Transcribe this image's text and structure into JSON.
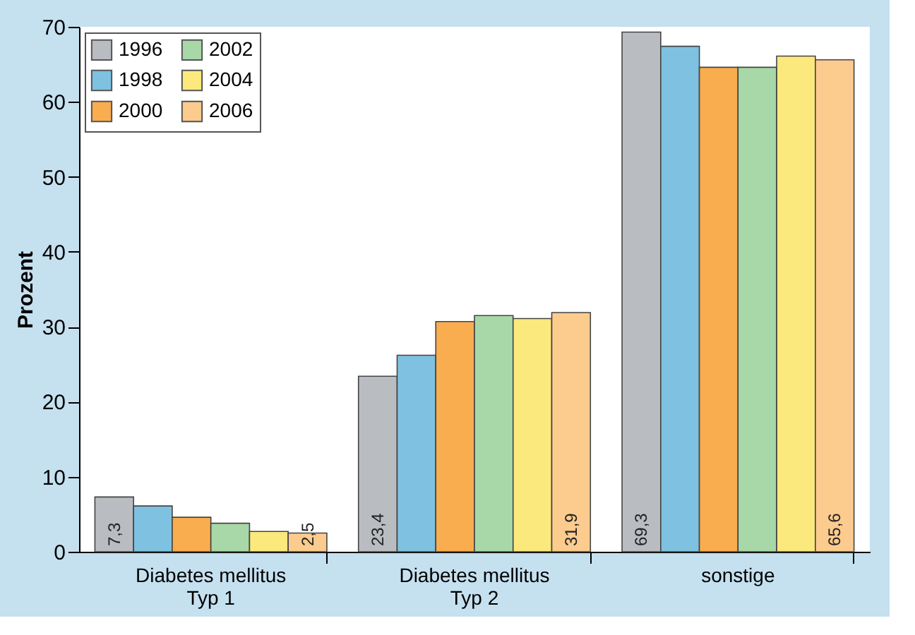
{
  "chart_data": {
    "type": "bar",
    "ylabel": "Prozent",
    "categories": [
      "Diabetes mellitus\nTyp 1",
      "Diabetes mellitus\nTyp 2",
      "sonstige"
    ],
    "series": [
      {
        "name": "1996",
        "color": "#b9bcc1",
        "values": [
          7.3,
          23.4,
          69.3
        ],
        "value_labels": [
          "7,3",
          "23,4",
          "69,3"
        ]
      },
      {
        "name": "1998",
        "color": "#7fc1e0",
        "values": [
          6.1,
          26.2,
          67.4
        ]
      },
      {
        "name": "2000",
        "color": "#f9ad4f",
        "values": [
          4.6,
          30.7,
          64.6
        ]
      },
      {
        "name": "2002",
        "color": "#a8d8a8",
        "values": [
          3.8,
          31.5,
          64.6
        ]
      },
      {
        "name": "2004",
        "color": "#fbe97d",
        "values": [
          2.7,
          31.1,
          66.1
        ]
      },
      {
        "name": "2006",
        "color": "#fccb8e",
        "values": [
          2.5,
          31.9,
          65.6
        ],
        "value_labels": [
          "2,5",
          "31,9",
          "65,6"
        ]
      }
    ],
    "ylim": [
      0,
      70
    ],
    "yticks": [
      0,
      10,
      20,
      30,
      40,
      50,
      60,
      70
    ],
    "grid": false,
    "legend": "top left"
  }
}
